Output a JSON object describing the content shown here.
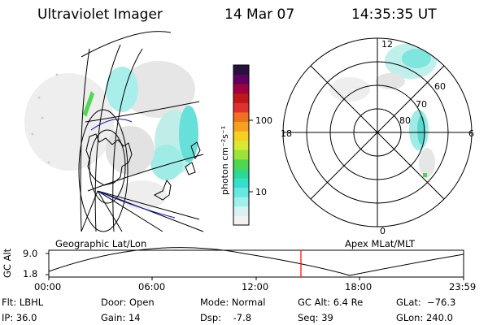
{
  "header": {
    "title": "Ultraviolet Imager",
    "date": "14 Mar 07",
    "time": "14:35:35 UT"
  },
  "colorbar": {
    "unit_label": "photon cm⁻²s⁻¹",
    "tick_100": "100",
    "tick_10": "10",
    "colors": [
      "#f2f2f2",
      "#d8f2f2",
      "#9ff0ea",
      "#66e8e0",
      "#33e0cc",
      "#2fd890",
      "#4fd84f",
      "#9be23a",
      "#d9e830",
      "#f5d020",
      "#f5a020",
      "#f07020",
      "#e03030",
      "#c01818",
      "#a00040",
      "#600060",
      "#2a1040"
    ]
  },
  "left_panel": {
    "caption": "Geographic Lat/Lon"
  },
  "right_panel": {
    "caption": "Apex MLat/MLT",
    "clock_labels": {
      "top": "12",
      "left": "18",
      "right": "6",
      "bottom": "0"
    },
    "lat_labels": [
      "80",
      "70",
      "60"
    ]
  },
  "timeline": {
    "y_axis_label": "GC Alt",
    "y_max": "9.0",
    "y_min": "1.8",
    "time_ticks": [
      "00:00",
      "06:00",
      "12:00",
      "18:00",
      "23:59"
    ],
    "marker_time": "14:35",
    "marker_color": "#ff0000"
  },
  "info": {
    "flt": "Flt: LBHL",
    "ip": "IP: 36.0",
    "door": "Door: Open",
    "gain": "Gain: 14",
    "mode": "Mode: Normal",
    "dsp": "Dsp:    -7.8",
    "gc_alt": "GC Alt: 6.4 Re",
    "seq": "Seq: 39",
    "glat": "GLat:  −76.3",
    "glon": "GLon: 240.0"
  }
}
